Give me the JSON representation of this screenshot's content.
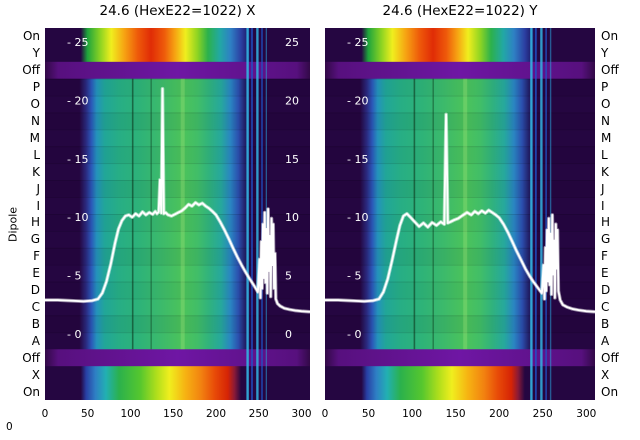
{
  "axis": {
    "row_labels": [
      "On",
      "Y",
      "Off",
      "P",
      "O",
      "N",
      "M",
      "L",
      "K",
      "J",
      "I",
      "H",
      "G",
      "F",
      "E",
      "D",
      "C",
      "B",
      "A",
      "Off",
      "X",
      "On"
    ],
    "dipole_label": "Dipole",
    "origin_label": "0"
  },
  "chart_data": {
    "type": "heatmap",
    "description": "Two heatmap panels (X and Y) of dipole rows vs longitudinal position with overlaid white intensity traces",
    "colors": {
      "background": "#ffffff",
      "trace": "#ffffff",
      "text": "#000000"
    },
    "row_profiles": [
      "top",
      "top",
      "off",
      "body",
      "body",
      "body",
      "body",
      "body",
      "body",
      "body",
      "body",
      "body",
      "body",
      "body",
      "body",
      "body",
      "body",
      "body",
      "body",
      "off",
      "bottom",
      "bottom"
    ],
    "profiles": {
      "body": [
        [
          0,
          "#250641"
        ],
        [
          0.13,
          "#250641"
        ],
        [
          0.155,
          "#2b2a80"
        ],
        [
          0.175,
          "#2b57b8"
        ],
        [
          0.195,
          "#2492bc"
        ],
        [
          0.225,
          "#21a698"
        ],
        [
          0.28,
          "#27ae85"
        ],
        [
          0.36,
          "#2eb378"
        ],
        [
          0.44,
          "#3cba6b"
        ],
        [
          0.52,
          "#4cc35a"
        ],
        [
          0.575,
          "#41be68"
        ],
        [
          0.62,
          "#30b27e"
        ],
        [
          0.665,
          "#26a89d"
        ],
        [
          0.7,
          "#2a85c2"
        ],
        [
          0.73,
          "#2b4fae"
        ],
        [
          0.755,
          "#221f68"
        ],
        [
          0.78,
          "#250641"
        ],
        [
          1,
          "#250641"
        ]
      ],
      "top": [
        [
          0,
          "#250641"
        ],
        [
          0.135,
          "#250641"
        ],
        [
          0.16,
          "#1ea43c"
        ],
        [
          0.21,
          "#8fd422"
        ],
        [
          0.25,
          "#f0ee1e"
        ],
        [
          0.3,
          "#f6a212"
        ],
        [
          0.35,
          "#ee5a0a"
        ],
        [
          0.4,
          "#e02c06"
        ],
        [
          0.45,
          "#ee5a0a"
        ],
        [
          0.49,
          "#f6a212"
        ],
        [
          0.53,
          "#f0ee1e"
        ],
        [
          0.575,
          "#8fd422"
        ],
        [
          0.615,
          "#2cb14c"
        ],
        [
          0.66,
          "#22a8a4"
        ],
        [
          0.7,
          "#2e80c4"
        ],
        [
          0.74,
          "#2b3fa2"
        ],
        [
          0.77,
          "#1d1560"
        ],
        [
          0.79,
          "#250641"
        ],
        [
          1,
          "#250641"
        ]
      ],
      "bottom": [
        [
          0,
          "#250641"
        ],
        [
          0.135,
          "#250641"
        ],
        [
          0.155,
          "#283fa4"
        ],
        [
          0.19,
          "#2e7fc4"
        ],
        [
          0.23,
          "#22b0b2"
        ],
        [
          0.28,
          "#2bb14c"
        ],
        [
          0.36,
          "#56c72e"
        ],
        [
          0.42,
          "#aede1c"
        ],
        [
          0.47,
          "#f0ee1e"
        ],
        [
          0.53,
          "#f6b212"
        ],
        [
          0.59,
          "#f28110"
        ],
        [
          0.64,
          "#e84b08"
        ],
        [
          0.69,
          "#d62405"
        ],
        [
          0.715,
          "#8a1a38"
        ],
        [
          0.74,
          "#250641"
        ],
        [
          1,
          "#250641"
        ]
      ],
      "off": [
        [
          0,
          "#320947"
        ],
        [
          0.05,
          "#57107e"
        ],
        [
          0.5,
          "#6f16a4"
        ],
        [
          0.95,
          "#57107e"
        ],
        [
          1,
          "#320947"
        ]
      ]
    },
    "stripes": [
      {
        "f": 0.328,
        "w": 0.006,
        "color": "#06220c",
        "alpha": 0.5,
        "rows": "body"
      },
      {
        "f": 0.398,
        "w": 0.005,
        "color": "#06220c",
        "alpha": 0.4,
        "rows": "body"
      },
      {
        "f": 0.512,
        "w": 0.015,
        "color": "#a8e880",
        "alpha": 0.3,
        "rows": "body"
      },
      {
        "f": 0.76,
        "w": 0.009,
        "color": "#33b4e2",
        "alpha": 0.9,
        "rows": "all"
      },
      {
        "f": 0.778,
        "w": 0.006,
        "color": "#1f55cc",
        "alpha": 0.85,
        "rows": "all"
      },
      {
        "f": 0.797,
        "w": 0.009,
        "color": "#33b4e2",
        "alpha": 0.85,
        "rows": "all"
      },
      {
        "f": 0.816,
        "w": 0.006,
        "color": "#1f55cc",
        "alpha": 0.75,
        "rows": "all"
      },
      {
        "f": 0.833,
        "w": 0.005,
        "color": "#2aa0d8",
        "alpha": 0.55,
        "rows": "all"
      }
    ],
    "plots": [
      {
        "title": "24.6 (HexE22=1022) X",
        "x_range": [
          0,
          310
        ],
        "value_range": [
          0,
          25
        ],
        "x_ticks": [
          0,
          50,
          100,
          150,
          200,
          250,
          300
        ],
        "value_ticks": [
          25,
          20,
          15,
          10,
          5,
          0
        ],
        "inner_left": [
          "- 25",
          "- 20",
          "- 15",
          "- 10",
          "- 5",
          "- 0"
        ],
        "inner_right": [
          "25",
          "20",
          "15",
          "10",
          "5",
          "0"
        ],
        "line": {
          "x": [
            0,
            15,
            30,
            45,
            55,
            62,
            67,
            72,
            77,
            82,
            86,
            90,
            94,
            98,
            102,
            106,
            110,
            114,
            118,
            122,
            126,
            129,
            131,
            133,
            134.5,
            136,
            137.5,
            139,
            141,
            144,
            148,
            152,
            156,
            160,
            164,
            168,
            172,
            176,
            180,
            184,
            188,
            192,
            196,
            200,
            205,
            210,
            215,
            220,
            225,
            230,
            235,
            240,
            244,
            247,
            249,
            251,
            252,
            253,
            254,
            255,
            256,
            257,
            258,
            259,
            260,
            261,
            262,
            263,
            264,
            265,
            266,
            267,
            268,
            269,
            270,
            272,
            275,
            280,
            286,
            293,
            300,
            310
          ],
          "v": [
            2.9,
            2.9,
            2.85,
            2.8,
            2.85,
            3.0,
            3.5,
            4.5,
            6.0,
            7.8,
            9.0,
            9.7,
            10.1,
            10.2,
            10.0,
            10.3,
            10.1,
            10.45,
            10.2,
            10.4,
            10.25,
            10.5,
            10.3,
            10.45,
            13.2,
            10.35,
            21.0,
            10.3,
            10.4,
            10.2,
            10.1,
            10.25,
            10.4,
            10.55,
            10.8,
            11.1,
            10.95,
            11.25,
            11.05,
            11.2,
            10.95,
            10.75,
            10.5,
            10.2,
            9.6,
            8.9,
            8.15,
            7.35,
            6.6,
            5.9,
            5.25,
            4.65,
            4.2,
            3.85,
            3.6,
            6.4,
            3.1,
            7.9,
            3.9,
            9.4,
            4.8,
            10.4,
            4.4,
            9.0,
            3.5,
            10.7,
            5.4,
            8.4,
            3.2,
            9.9,
            5.9,
            9.4,
            3.9,
            6.9,
            3.0,
            2.6,
            2.4,
            2.2,
            2.1,
            2.0,
            1.95,
            1.9
          ]
        }
      },
      {
        "title": "24.6 (HexE22=1022) Y",
        "x_range": [
          0,
          310
        ],
        "value_range": [
          0,
          25
        ],
        "x_ticks": [
          0,
          50,
          100,
          150,
          200,
          250,
          300
        ],
        "value_ticks": [
          25,
          20,
          15,
          10,
          5,
          0
        ],
        "inner_left": [
          "- 25",
          "- 20",
          "- 15",
          "- 10",
          "- 5",
          "- 0"
        ],
        "inner_right": [],
        "line": {
          "x": [
            0,
            15,
            30,
            45,
            55,
            62,
            67,
            72,
            77,
            82,
            86,
            90,
            94,
            98,
            103,
            108,
            113,
            118,
            123,
            128,
            133,
            137,
            139,
            141,
            144,
            148,
            153,
            158,
            163,
            168,
            172,
            176,
            180,
            184,
            188,
            192,
            196,
            200,
            205,
            210,
            215,
            220,
            225,
            230,
            235,
            240,
            244,
            247,
            249,
            251,
            252,
            253,
            254,
            255,
            256,
            257,
            258,
            259,
            260,
            261,
            262,
            263,
            264,
            265,
            266,
            267,
            268,
            270,
            273,
            278,
            284,
            291,
            300,
            310
          ],
          "v": [
            2.9,
            2.9,
            2.85,
            2.8,
            2.85,
            3.0,
            3.6,
            4.7,
            6.3,
            8.0,
            9.3,
            10.1,
            10.3,
            10.0,
            9.6,
            9.2,
            9.5,
            9.15,
            9.55,
            9.3,
            9.6,
            9.4,
            18.8,
            9.5,
            9.6,
            9.75,
            9.9,
            10.15,
            10.4,
            10.2,
            10.5,
            10.3,
            10.55,
            10.35,
            10.6,
            10.4,
            10.2,
            9.95,
            9.4,
            8.7,
            7.9,
            7.1,
            6.35,
            5.6,
            4.95,
            4.4,
            4.0,
            3.7,
            3.5,
            5.9,
            3.0,
            7.4,
            3.7,
            8.9,
            4.5,
            9.9,
            4.2,
            8.6,
            3.4,
            10.2,
            5.1,
            8.0,
            3.1,
            9.4,
            5.6,
            8.9,
            3.7,
            2.9,
            2.5,
            2.3,
            2.15,
            2.05,
            1.95,
            1.9
          ]
        }
      }
    ]
  }
}
